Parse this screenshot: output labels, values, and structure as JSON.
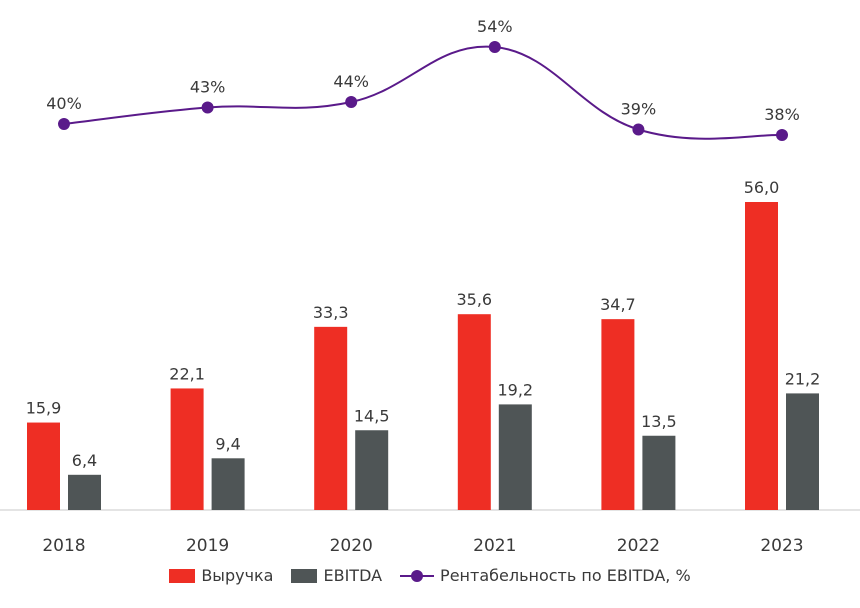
{
  "chart_data": {
    "type": "bar",
    "categories": [
      "2018",
      "2019",
      "2020",
      "2021",
      "2022",
      "2023"
    ],
    "series": [
      {
        "name": "Выручка",
        "kind": "bar",
        "values": [
          15.9,
          22.1,
          33.3,
          35.6,
          34.7,
          56.0
        ],
        "labels": [
          "15,9",
          "22,1",
          "33,3",
          "35,6",
          "34,7",
          "56,0"
        ],
        "color": "#ee2e24"
      },
      {
        "name": "EBITDA",
        "kind": "bar",
        "values": [
          6.4,
          9.4,
          14.5,
          19.2,
          13.5,
          21.2
        ],
        "labels": [
          "6,4",
          "9,4",
          "14,5",
          "19,2",
          "13,5",
          "21,2"
        ],
        "color": "#4f5556"
      },
      {
        "name": "Рентабельность по EBITDA, %",
        "kind": "line",
        "values": [
          40,
          43,
          44,
          54,
          39,
          38
        ],
        "labels": [
          "40%",
          "43%",
          "44%",
          "54%",
          "39%",
          "38%"
        ],
        "color": "#5a1a8a"
      }
    ],
    "ylim": [
      0,
      60
    ],
    "legend_position": "bottom",
    "grid": false
  },
  "colors": {
    "axis": "#c8c8c8",
    "text": "#3a3a3a"
  }
}
